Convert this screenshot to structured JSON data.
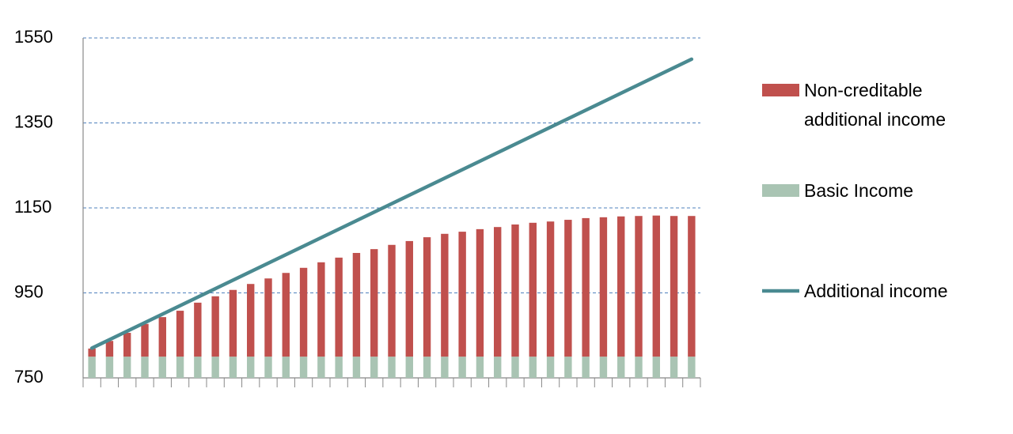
{
  "chart_data": {
    "type": "bar",
    "categories": [
      null,
      null,
      null,
      null,
      null,
      null,
      null,
      null,
      null,
      null,
      null,
      null,
      null,
      null,
      null,
      null,
      null,
      null,
      null,
      null,
      null,
      null,
      null,
      null,
      null,
      null,
      null,
      null,
      null,
      null,
      null,
      null,
      null,
      null,
      null
    ],
    "series": [
      {
        "name": "Basic Income",
        "color": "#a9c4b3",
        "stack": true,
        "values": [
          800,
          800,
          800,
          800,
          800,
          800,
          800,
          800,
          800,
          800,
          800,
          800,
          800,
          800,
          800,
          800,
          800,
          800,
          800,
          800,
          800,
          800,
          800,
          800,
          800,
          800,
          800,
          800,
          800,
          800,
          800,
          800,
          800,
          800,
          800
        ]
      },
      {
        "name": "Non-creditable additional income",
        "color": "#c0504d",
        "stack": true,
        "values": [
          19,
          37,
          56,
          77,
          93,
          108,
          127,
          142,
          157,
          171,
          184,
          197,
          209,
          222,
          233,
          244,
          253,
          263,
          272,
          281,
          289,
          294,
          300,
          305,
          311,
          315,
          318,
          322,
          326,
          328,
          330,
          331,
          332,
          331,
          331
        ]
      },
      {
        "name": "Additional income",
        "color": "#4a8a91",
        "kind": "line",
        "values": [
          820,
          840,
          860,
          880,
          900,
          920,
          940,
          960,
          980,
          1000,
          1020,
          1040,
          1060,
          1080,
          1100,
          1120,
          1140,
          1160,
          1180,
          1200,
          1220,
          1240,
          1260,
          1280,
          1300,
          1320,
          1340,
          1360,
          1380,
          1400,
          1420,
          1440,
          1460,
          1480,
          1500
        ]
      }
    ],
    "ylim": [
      750,
      1550
    ],
    "yticks": [
      750,
      950,
      1150,
      1350,
      1550
    ],
    "grid": true,
    "legend": "right"
  }
}
